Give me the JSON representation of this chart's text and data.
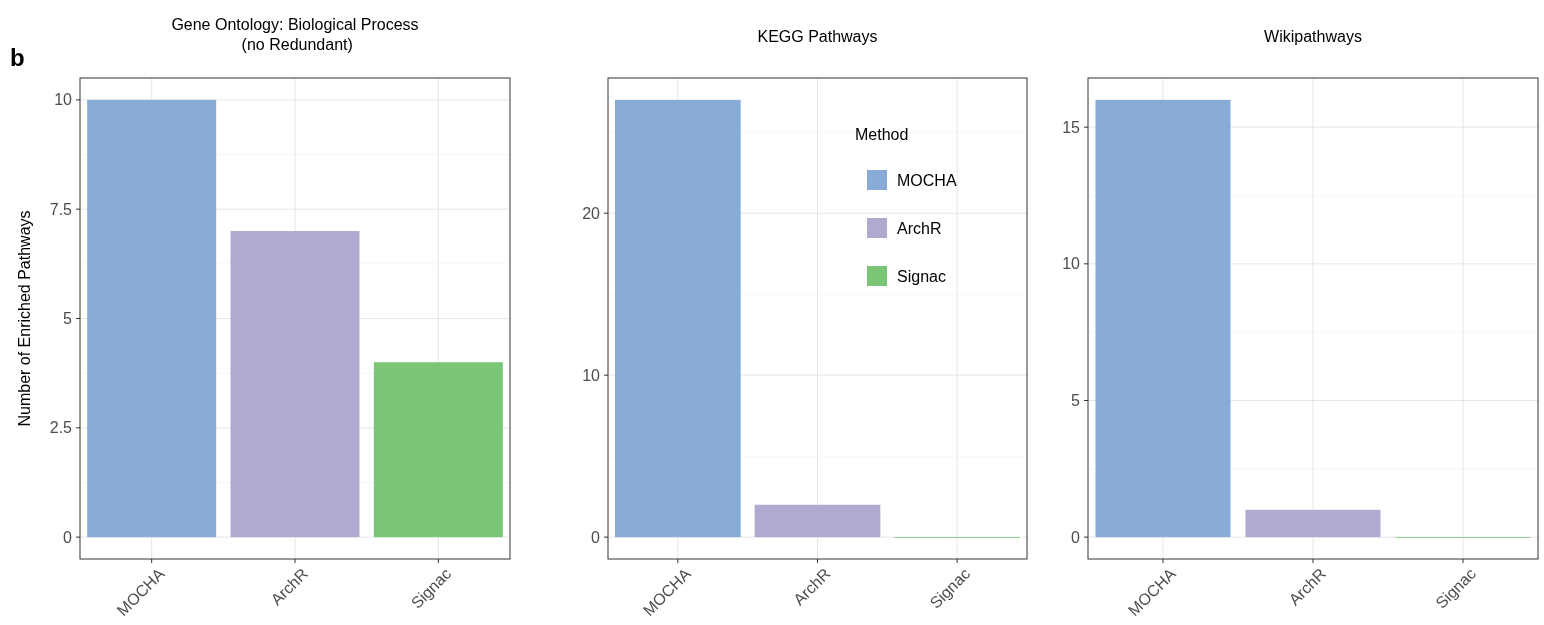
{
  "chart_data": [
    {
      "type": "bar",
      "title": "Gene Ontology: Biological Process\n (no Redundant)",
      "ylabel": "Number of Enriched Pathways",
      "categories": [
        "MOCHA",
        "ArchR",
        "Signac"
      ],
      "values": [
        10,
        7,
        4
      ],
      "colors": [
        "#88abd8",
        "#b1aad0",
        "#7bc676"
      ],
      "ylim": [
        -0.5,
        10.5
      ],
      "yticks": [
        0,
        2.5,
        5,
        7.5,
        10
      ],
      "grid": true,
      "annotations": [
        "b"
      ]
    },
    {
      "type": "bar",
      "title": "KEGG Pathways",
      "categories": [
        "MOCHA",
        "ArchR",
        "Signac"
      ],
      "series": [
        {
          "name": "MOCHA",
          "color": "#88abd8",
          "values": [
            27,
            null,
            null
          ]
        },
        {
          "name": "ArchR",
          "color": "#b1aad0",
          "values": [
            null,
            2,
            null
          ]
        },
        {
          "name": "Signac",
          "color": "#7bc676",
          "values": [
            null,
            null,
            0
          ]
        }
      ],
      "ylim": [
        -1.35,
        28.35
      ],
      "yticks": [
        0,
        10,
        20
      ],
      "grid": true,
      "legend": "top right",
      "legend_title": "Method"
    },
    {
      "type": "bar",
      "title": "Wikipathways",
      "categories": [
        "MOCHA",
        "ArchR",
        "Signac"
      ],
      "values": [
        16,
        1,
        0
      ],
      "colors": [
        "#88abd8",
        "#b1aad0",
        "#7bc676"
      ],
      "ylim": [
        -0.8,
        16.8
      ],
      "yticks": [
        0,
        5,
        10,
        15
      ],
      "grid": true
    }
  ]
}
